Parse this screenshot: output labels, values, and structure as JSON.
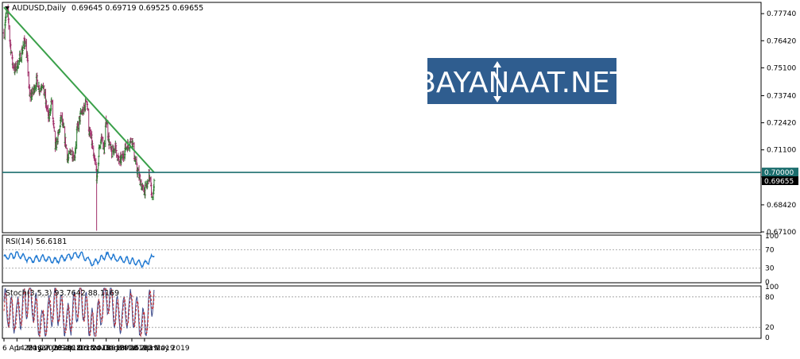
{
  "main": {
    "symbol": "AUDUSD,Daily",
    "ohlc": "0.69645 0.69719 0.69525 0.69655",
    "price_ticks": [
      "0.77740",
      "0.76420",
      "0.75100",
      "0.73740",
      "0.72420",
      "0.71100",
      "0.69780",
      "0.68420",
      "0.67100"
    ],
    "level_label": "0.70000",
    "last_label": "0.69655",
    "watermark": "BAYANAAT.NET"
  },
  "rsi": {
    "title": "RSI(14) 56.6181",
    "ticks": [
      "100",
      "70",
      "30",
      "0"
    ]
  },
  "stoch": {
    "title": "Stoch(3,5,3) 93.7642 88.1169",
    "ticks": [
      "100",
      "80",
      "20",
      "0"
    ]
  },
  "dates": [
    "6 Apr 2018",
    "14 May 2018",
    "20 Jun 2018",
    "27 Jul 2018",
    "3 Sep 2018",
    "10 Oct 2018",
    "16 Nov 2018",
    "24 Dec 2018",
    "30 Jan 2019",
    "8 Mar 2019",
    "15 Apr 2019",
    "22 May 2019"
  ],
  "colors": {
    "up_bar": "#2e7d32",
    "down_bar": "#a0306a",
    "trendline": "#3aa04a",
    "level_line": "#1c6e6e",
    "rsi_line": "#1f78d1",
    "stoch_main": "#3c4a8a",
    "stoch_signal": "#d03030",
    "watermark_bg": "#2f5d8f"
  },
  "chart_data": [
    {
      "type": "candlestick",
      "symbol": "AUDUSD",
      "timeframe": "Daily",
      "ylim": [
        0.671,
        0.7825
      ],
      "horizontal_level": 0.7,
      "last_price": 0.69655,
      "trendline": {
        "from": {
          "date": "6 Apr 2018",
          "price": 0.7805
        },
        "to": {
          "date": "19 Jun 2019",
          "price": 0.7
        }
      },
      "anchors": [
        {
          "x": "6 Apr 2018",
          "y": 0.768
        },
        {
          "x": "10 Apr 2018",
          "y": 0.775
        },
        {
          "x": "17 Apr 2018",
          "y": 0.779
        },
        {
          "x": "23 Apr 2018",
          "y": 0.765
        },
        {
          "x": "30 Apr 2018",
          "y": 0.754
        },
        {
          "x": "7 May 2018",
          "y": 0.75
        },
        {
          "x": "14 May 2018",
          "y": 0.752
        },
        {
          "x": "23 May 2018",
          "y": 0.756
        },
        {
          "x": "30 May 2018",
          "y": 0.76
        },
        {
          "x": "6 Jun 2018",
          "y": 0.765
        },
        {
          "x": "13 Jun 2018",
          "y": 0.755
        },
        {
          "x": "20 Jun 2018",
          "y": 0.737
        },
        {
          "x": "29 Jun 2018",
          "y": 0.739
        },
        {
          "x": "11 Jul 2018",
          "y": 0.745
        },
        {
          "x": "20 Jul 2018",
          "y": 0.74
        },
        {
          "x": "27 Jul 2018",
          "y": 0.744
        },
        {
          "x": "6 Aug 2018",
          "y": 0.734
        },
        {
          "x": "15 Aug 2018",
          "y": 0.726
        },
        {
          "x": "23 Aug 2018",
          "y": 0.735
        },
        {
          "x": "3 Sep 2018",
          "y": 0.712
        },
        {
          "x": "12 Sep 2018",
          "y": 0.718
        },
        {
          "x": "20 Sep 2018",
          "y": 0.727
        },
        {
          "x": "28 Sep 2018",
          "y": 0.72
        },
        {
          "x": "10 Oct 2018",
          "y": 0.706
        },
        {
          "x": "19 Oct 2018",
          "y": 0.711
        },
        {
          "x": "29 Oct 2018",
          "y": 0.707
        },
        {
          "x": "5 Nov 2018",
          "y": 0.72
        },
        {
          "x": "16 Nov 2018",
          "y": 0.728
        },
        {
          "x": "27 Nov 2018",
          "y": 0.731
        },
        {
          "x": "4 Dec 2018",
          "y": 0.736
        },
        {
          "x": "11 Dec 2018",
          "y": 0.72
        },
        {
          "x": "18 Dec 2018",
          "y": 0.716
        },
        {
          "x": "24 Dec 2018",
          "y": 0.707
        },
        {
          "x": "31 Dec 2018",
          "y": 0.703
        },
        {
          "x": "3 Jan 2019",
          "y": 0.696
        },
        {
          "x": "10 Jan 2019",
          "y": 0.713
        },
        {
          "x": "17 Jan 2019",
          "y": 0.717
        },
        {
          "x": "24 Jan 2019",
          "y": 0.711
        },
        {
          "x": "30 Jan 2019",
          "y": 0.726
        },
        {
          "x": "7 Feb 2019",
          "y": 0.715
        },
        {
          "x": "15 Feb 2019",
          "y": 0.709
        },
        {
          "x": "25 Feb 2019",
          "y": 0.713
        },
        {
          "x": "8 Mar 2019",
          "y": 0.705
        },
        {
          "x": "18 Mar 2019",
          "y": 0.707
        },
        {
          "x": "27 Mar 2019",
          "y": 0.712
        },
        {
          "x": "8 Apr 2019",
          "y": 0.714
        },
        {
          "x": "15 Apr 2019",
          "y": 0.717
        },
        {
          "x": "23 Apr 2019",
          "y": 0.707
        },
        {
          "x": "29 Apr 2019",
          "y": 0.702
        },
        {
          "x": "8 May 2019",
          "y": 0.697
        },
        {
          "x": "15 May 2019",
          "y": 0.692
        },
        {
          "x": "22 May 2019",
          "y": 0.691
        },
        {
          "x": "29 May 2019",
          "y": 0.693
        },
        {
          "x": "4 Jun 2019",
          "y": 0.699
        },
        {
          "x": "10 Jun 2019",
          "y": 0.692
        },
        {
          "x": "14 Jun 2019",
          "y": 0.686
        },
        {
          "x": "19 Jun 2019",
          "y": 0.696
        }
      ],
      "spike_low": {
        "x": "2 Jan 2019",
        "y": 0.6716
      }
    },
    {
      "type": "line",
      "name": "RSI(14)",
      "current": 56.6181,
      "ylim": [
        0,
        100
      ],
      "levels": [
        70,
        30
      ],
      "x": [
        "6 Apr 2018",
        "14 May 2018",
        "20 Jun 2018",
        "27 Jul 2018",
        "3 Sep 2018",
        "10 Oct 2018",
        "16 Nov 2018",
        "24 Dec 2018",
        "30 Jan 2019",
        "8 Mar 2019",
        "15 Apr 2019",
        "22 May 2019",
        "19 Jun 2019"
      ],
      "y": [
        52,
        60,
        48,
        52,
        46,
        55,
        60,
        40,
        58,
        50,
        46,
        38,
        56.6
      ]
    },
    {
      "type": "line",
      "name": "Stoch(3,5,3)",
      "series_values": {
        "main": 93.7642,
        "signal": 88.1169
      },
      "ylim": [
        0,
        100
      ],
      "levels": [
        80,
        20
      ],
      "x": [
        "6 Apr 2018",
        "14 May 2018",
        "20 Jun 2018",
        "27 Jul 2018",
        "3 Sep 2018",
        "10 Oct 2018",
        "16 Nov 2018",
        "24 Dec 2018",
        "30 Jan 2019",
        "8 Mar 2019",
        "15 Apr 2019",
        "22 May 2019",
        "19 Jun 2019"
      ],
      "y": [
        60,
        40,
        80,
        20,
        70,
        30,
        80,
        15,
        85,
        40,
        60,
        20,
        93.8
      ]
    }
  ]
}
